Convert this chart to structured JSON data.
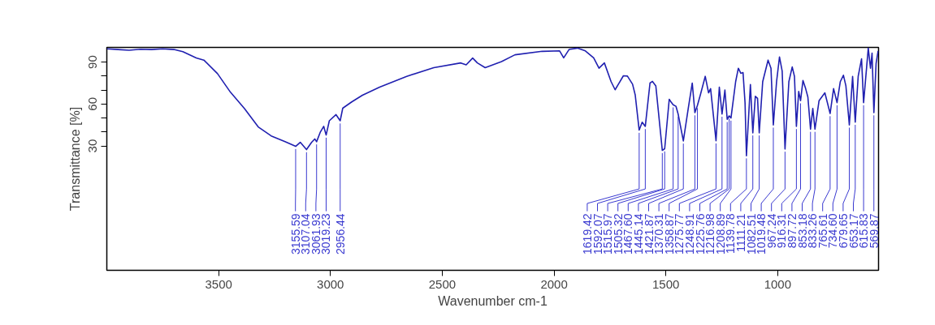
{
  "chart_data": {
    "type": "line",
    "xlabel": "Wavenumber cm-1",
    "ylabel": "Transmittance [%]",
    "xlim": [
      4000,
      549
    ],
    "ylim": [
      -59,
      100.5
    ],
    "xticks": [
      3500,
      3000,
      2500,
      2000,
      1500,
      1000
    ],
    "yticks": [
      30,
      {
        "value": 40,
        "label": null
      },
      {
        "value": 50,
        "label": null
      },
      60,
      {
        "value": 70,
        "label": null
      },
      {
        "value": 80,
        "label": null
      },
      90
    ],
    "grid": false,
    "series": [
      {
        "color": "#2020b0",
        "x": [
          3999,
          3950,
          3900,
          3850,
          3800,
          3750,
          3700,
          3660,
          3600,
          3566,
          3505,
          3447,
          3385,
          3323,
          3265,
          3203,
          3155.59,
          3135,
          3107.04,
          3084,
          3070,
          3061.93,
          3045,
          3030,
          3019.23,
          3005,
          2975,
          2956.44,
          2945,
          2905,
          2857,
          2780,
          2659,
          2538,
          2417,
          2393,
          2364,
          2343,
          2308,
          2235,
          2175,
          2053,
          1975,
          1957,
          1933,
          1896,
          1860,
          1823,
          1799,
          1775,
          1745,
          1727,
          1690,
          1672,
          1649,
          1637,
          1619.42,
          1606,
          1592.07,
          1571,
          1560,
          1545,
          1515.97,
          1505.32,
          1485,
          1475,
          1467.6,
          1455,
          1445.14,
          1421.87,
          1400,
          1382,
          1370.31,
          1358.87,
          1345,
          1324,
          1309,
          1300,
          1275.77,
          1261,
          1248.91,
          1236,
          1225.76,
          1216.98,
          1208.89,
          1188,
          1176,
          1165,
          1155,
          1146,
          1139.78,
          1122,
          1111.21,
          1100,
          1090,
          1082.51,
          1067,
          1043,
          1030,
          1019.48,
          1005,
          992,
          980,
          967.24,
          950,
          935,
          925,
          916.31,
          906,
          897.72,
          887,
          875,
          865,
          853.18,
          843,
          833.26,
          815,
          789,
          765.61,
          750,
          734.6,
          720,
          706,
          695,
          679.65,
          665,
          653.17,
          640,
          625,
          615.83,
          595,
          585,
          578,
          569.87,
          560,
          551
        ],
        "values": [
          99.5,
          99,
          98.5,
          99.2,
          99,
          99.5,
          99,
          97.5,
          93,
          91.4,
          81.7,
          68.4,
          56.8,
          43.6,
          37.2,
          33.1,
          29.7,
          32.6,
          27.4,
          32.6,
          35,
          33,
          40,
          44,
          37.8,
          48,
          52.4,
          48,
          57,
          61.5,
          66.3,
          72.1,
          79.8,
          86,
          89.4,
          88,
          92.9,
          89.4,
          86,
          90.4,
          95.2,
          97.7,
          98,
          93,
          99,
          100,
          98,
          93,
          85.6,
          89.4,
          76,
          70.2,
          80.2,
          80,
          74.2,
          66.4,
          41.3,
          47,
          44,
          75,
          76.2,
          73,
          26.8,
          28,
          63.4,
          61,
          59.5,
          58.4,
          52.8,
          33.6,
          56.8,
          75,
          53.8,
          59,
          67,
          79.8,
          68,
          71,
          33.7,
          72.1,
          52.8,
          70,
          49,
          51.5,
          50,
          76,
          85.6,
          82,
          82.5,
          61,
          23,
          74,
          39.4,
          65.5,
          64,
          39.4,
          76,
          91.4,
          85.6,
          45,
          76,
          93.7,
          83.6,
          27.8,
          76,
          86.5,
          79.8,
          44,
          69,
          62.4,
          76.8,
          71,
          65,
          42,
          56.8,
          42,
          62.4,
          68,
          53.2,
          71,
          61,
          76,
          80.6,
          73,
          45,
          79.8,
          47,
          79.8,
          92.3,
          61,
          100,
          85.6,
          96.4,
          53.8,
          89,
          98
        ]
      }
    ],
    "annotations": [
      {
        "text": "3155.59",
        "x": 3155.59,
        "y": 29.7
      },
      {
        "text": "3107.04",
        "x": 3107.04,
        "y": 27.4
      },
      {
        "text": "3061.93",
        "x": 3061.93,
        "y": 33
      },
      {
        "text": "3019.23",
        "x": 3019.23,
        "y": 37.8
      },
      {
        "text": "2956.44",
        "x": 2956.44,
        "y": 48
      },
      {
        "text": "1619.42",
        "x": 1619.42,
        "y": 41.3
      },
      {
        "text": "1592.07",
        "x": 1592.07,
        "y": 44
      },
      {
        "text": "1515.97",
        "x": 1515.97,
        "y": 26.8
      },
      {
        "text": "1505.32",
        "x": 1505.32,
        "y": 28
      },
      {
        "text": "1467.60",
        "x": 1467.6,
        "y": 59.5
      },
      {
        "text": "1445.14",
        "x": 1445.14,
        "y": 52.8
      },
      {
        "text": "1421.87",
        "x": 1421.87,
        "y": 33.6
      },
      {
        "text": "1370.31",
        "x": 1370.31,
        "y": 53.8
      },
      {
        "text": "1358.87",
        "x": 1358.87,
        "y": 59
      },
      {
        "text": "1275.77",
        "x": 1275.77,
        "y": 33.7
      },
      {
        "text": "1248.91",
        "x": 1248.91,
        "y": 52.8
      },
      {
        "text": "1225.76",
        "x": 1225.76,
        "y": 49
      },
      {
        "text": "1216.98",
        "x": 1216.98,
        "y": 51.5
      },
      {
        "text": "1208.89",
        "x": 1208.89,
        "y": 50
      },
      {
        "text": "1139.78",
        "x": 1139.78,
        "y": 23
      },
      {
        "text": "1111.21",
        "x": 1111.21,
        "y": 39.4
      },
      {
        "text": "1082.51",
        "x": 1082.51,
        "y": 39.4
      },
      {
        "text": "1019.48",
        "x": 1019.48,
        "y": 45
      },
      {
        "text": "967.24",
        "x": 967.24,
        "y": 27.8
      },
      {
        "text": "916.31",
        "x": 916.31,
        "y": 44
      },
      {
        "text": "897.72",
        "x": 897.72,
        "y": 62.4
      },
      {
        "text": "853.18",
        "x": 853.18,
        "y": 42
      },
      {
        "text": "833.26",
        "x": 833.26,
        "y": 42
      },
      {
        "text": "765.61",
        "x": 765.61,
        "y": 53.2
      },
      {
        "text": "734.60",
        "x": 734.6,
        "y": 61
      },
      {
        "text": "679.65",
        "x": 679.65,
        "y": 45
      },
      {
        "text": "653.17",
        "x": 653.17,
        "y": 47
      },
      {
        "text": "615.83",
        "x": 615.83,
        "y": 61
      },
      {
        "text": "569.87",
        "x": 569.87,
        "y": 53.8
      }
    ]
  }
}
